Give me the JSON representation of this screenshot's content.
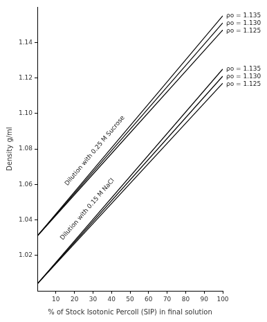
{
  "chart_data": {
    "type": "line",
    "x_label": "% of Stock Isotonic Percoll (SIP) in final solution",
    "y_label": "Density g/ml",
    "x": [
      0,
      100
    ],
    "series": [
      {
        "name": "ρo = 1.135",
        "color": "#000000",
        "values": [
          1.031,
          1.155
        ]
      },
      {
        "name": "ρo = 1.130",
        "color": "#000000",
        "values": [
          1.031,
          1.151
        ]
      },
      {
        "name": "ρo = 1.125",
        "color": "#000000",
        "values": [
          1.031,
          1.147
        ]
      },
      {
        "name": "ρo = 1.135",
        "color": "#000000",
        "values": [
          1.004,
          1.125
        ]
      },
      {
        "name": "ρo = 1.130",
        "color": "#000000",
        "values": [
          1.004,
          1.121
        ]
      },
      {
        "name": "ρo = 1.125",
        "color": "#000000",
        "values": [
          1.004,
          1.117
        ]
      }
    ],
    "annotations": [
      {
        "text": "Dilution with 0.25 M Sucrose",
        "x": 31,
        "y": 1.079
      },
      {
        "text": "Dilution with 0.15 M NaCl",
        "x": 27,
        "y": 1.046
      }
    ],
    "xlim": [
      0,
      100
    ],
    "xticks": [
      10,
      20,
      30,
      40,
      50,
      60,
      70,
      80,
      90,
      100
    ],
    "ylim": [
      1.0,
      1.16
    ],
    "yticks": [
      1.02,
      1.04,
      1.06,
      1.08,
      {
        "value": 1.1,
        "label": "1.10"
      },
      1.12,
      1.14
    ],
    "grid": false
  }
}
